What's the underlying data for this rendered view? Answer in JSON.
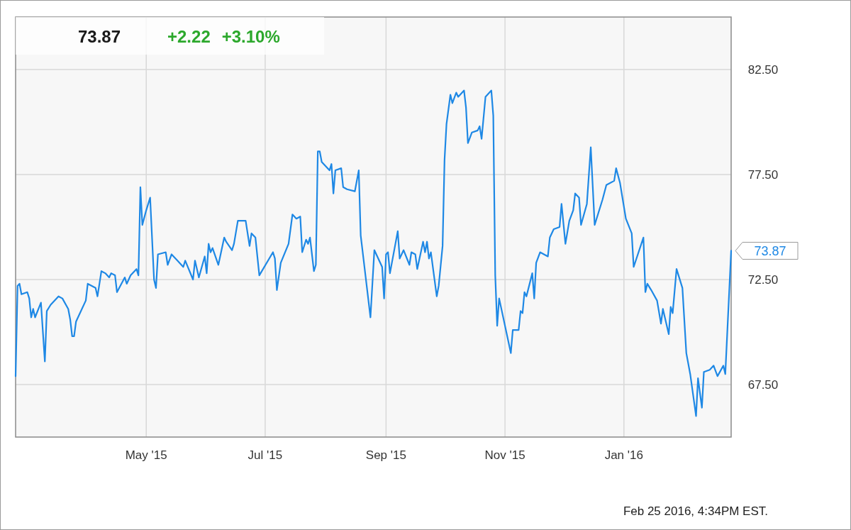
{
  "chart_data": {
    "type": "line",
    "title": "73.87",
    "subtitle": "+2.22 +3.10%",
    "x": [
      "2015-02-23",
      "2015-02-24",
      "2015-02-25",
      "2015-02-26",
      "2015-03-01",
      "2015-03-02",
      "2015-03-03",
      "2015-03-04",
      "2015-03-05",
      "2015-03-08",
      "2015-03-10",
      "2015-03-11",
      "2015-03-13",
      "2015-03-17",
      "2015-03-19",
      "2015-03-22",
      "2015-03-23",
      "2015-03-24",
      "2015-03-25",
      "2015-03-26",
      "2015-03-31",
      "2015-04-01",
      "2015-04-05",
      "2015-04-06",
      "2015-04-08",
      "2015-04-10",
      "2015-04-12",
      "2015-04-13",
      "2015-04-15",
      "2015-04-16",
      "2015-04-20",
      "2015-04-21",
      "2015-04-23",
      "2015-04-26",
      "2015-04-27",
      "2015-04-28",
      "2015-04-29",
      "2015-05-01",
      "2015-05-03",
      "2015-05-05",
      "2015-05-06",
      "2015-05-07",
      "2015-05-11",
      "2015-05-12",
      "2015-05-14",
      "2015-05-17",
      "2015-05-20",
      "2015-05-21",
      "2015-05-25",
      "2015-05-26",
      "2015-05-28",
      "2015-05-31",
      "2015-06-01",
      "2015-06-02",
      "2015-06-03",
      "2015-06-04",
      "2015-06-07",
      "2015-06-10",
      "2015-06-11",
      "2015-06-14",
      "2015-06-15",
      "2015-06-17",
      "2015-06-21",
      "2015-06-23",
      "2015-06-24",
      "2015-06-26",
      "2015-06-28",
      "2015-07-05",
      "2015-07-06",
      "2015-07-07",
      "2015-07-09",
      "2015-07-13",
      "2015-07-15",
      "2015-07-17",
      "2015-07-19",
      "2015-07-20",
      "2015-07-22",
      "2015-07-23",
      "2015-07-24",
      "2015-07-26",
      "2015-07-27",
      "2015-07-28",
      "2015-07-29",
      "2015-07-30",
      "2015-08-03",
      "2015-08-04",
      "2015-08-05",
      "2015-08-06",
      "2015-08-09",
      "2015-08-10",
      "2015-08-12",
      "2015-08-16",
      "2015-08-18",
      "2015-08-19",
      "2015-08-24",
      "2015-08-26",
      "2015-08-30",
      "2015-08-31",
      "2015-09-01",
      "2015-09-02",
      "2015-09-03",
      "2015-09-07",
      "2015-09-08",
      "2015-09-10",
      "2015-09-13",
      "2015-09-14",
      "2015-09-16",
      "2015-09-17",
      "2015-09-20",
      "2015-09-21",
      "2015-09-22",
      "2015-09-23",
      "2015-09-24",
      "2015-09-27",
      "2015-09-28",
      "2015-09-30",
      "2015-10-01",
      "2015-10-02",
      "2015-10-04",
      "2015-10-05",
      "2015-10-07",
      "2015-10-08",
      "2015-10-11",
      "2015-10-12",
      "2015-10-13",
      "2015-10-15",
      "2015-10-18",
      "2015-10-19",
      "2015-10-20",
      "2015-10-22",
      "2015-10-25",
      "2015-10-26",
      "2015-10-27",
      "2015-10-28",
      "2015-10-29",
      "2015-11-04",
      "2015-11-05",
      "2015-11-08",
      "2015-11-09",
      "2015-11-10",
      "2015-11-11",
      "2015-11-12",
      "2015-11-15",
      "2015-11-16",
      "2015-11-17",
      "2015-11-19",
      "2015-11-23",
      "2015-11-24",
      "2015-11-26",
      "2015-11-29",
      "2015-11-30",
      "2015-12-02",
      "2015-12-04",
      "2015-12-06",
      "2015-12-07",
      "2015-12-09",
      "2015-12-10",
      "2015-12-13",
      "2015-12-15",
      "2015-12-17",
      "2015-12-21",
      "2015-12-23",
      "2015-12-27",
      "2015-12-28",
      "2015-12-30",
      "2016-01-02",
      "2016-01-05",
      "2016-01-06",
      "2016-01-11",
      "2016-01-12",
      "2016-01-13",
      "2016-01-15",
      "2016-01-18",
      "2016-01-20",
      "2016-01-21",
      "2016-01-24",
      "2016-01-25",
      "2016-01-26",
      "2016-01-28",
      "2016-01-31",
      "2016-02-02",
      "2016-02-04",
      "2016-02-07",
      "2016-02-08",
      "2016-02-10",
      "2016-02-11",
      "2016-02-14",
      "2016-02-16",
      "2016-02-18",
      "2016-02-21",
      "2016-02-22",
      "2016-02-25"
    ],
    "series": [
      {
        "color": "#1e88e5",
        "values": [
          67.9,
          72.2,
          72.3,
          71.8,
          71.9,
          71.6,
          70.7,
          71.1,
          70.7,
          71.4,
          68.6,
          71.0,
          71.3,
          71.7,
          71.6,
          71.1,
          70.6,
          69.8,
          69.8,
          70.5,
          71.5,
          72.3,
          72.1,
          71.7,
          72.9,
          72.8,
          72.6,
          72.8,
          72.7,
          71.9,
          72.6,
          72.3,
          72.7,
          73.0,
          72.7,
          76.9,
          75.1,
          75.8,
          76.4,
          72.5,
          72.1,
          73.7,
          73.8,
          73.2,
          73.7,
          73.4,
          73.1,
          73.4,
          72.5,
          73.4,
          72.6,
          73.6,
          72.8,
          74.2,
          73.8,
          74.0,
          73.2,
          74.5,
          74.3,
          73.9,
          74.2,
          75.3,
          75.3,
          74.1,
          74.7,
          74.5,
          72.7,
          73.8,
          73.5,
          72.0,
          73.3,
          74.2,
          75.6,
          75.4,
          75.5,
          73.8,
          74.4,
          74.2,
          74.5,
          72.9,
          73.2,
          78.6,
          78.6,
          78.1,
          77.7,
          78.0,
          76.6,
          77.7,
          77.8,
          76.9,
          76.8,
          76.7,
          77.7,
          74.6,
          70.7,
          73.9,
          73.1,
          71.6,
          73.7,
          73.8,
          72.8,
          74.8,
          73.5,
          73.9,
          73.2,
          73.8,
          73.7,
          73.0,
          74.3,
          73.8,
          74.3,
          73.5,
          73.8,
          71.7,
          72.2,
          74.1,
          78.2,
          79.9,
          81.3,
          80.9,
          81.4,
          81.2,
          81.5,
          80.7,
          79.0,
          79.5,
          79.6,
          79.8,
          79.2,
          81.2,
          81.5,
          80.3,
          72.7,
          70.3,
          71.6,
          69.0,
          70.1,
          70.1,
          71.0,
          70.9,
          71.9,
          71.7,
          72.8,
          71.6,
          73.3,
          73.8,
          73.6,
          74.5,
          74.9,
          75.0,
          76.1,
          74.2,
          75.3,
          75.8,
          76.6,
          76.4,
          75.1,
          76.1,
          78.8,
          75.1,
          76.3,
          77.0,
          77.2,
          77.8,
          77.1,
          75.4,
          74.7,
          73.1,
          74.5,
          71.9,
          72.3,
          72.0,
          71.5,
          70.4,
          71.1,
          69.9,
          71.2,
          70.9,
          73.0,
          72.1,
          69.0,
          68.0,
          66.0,
          67.8,
          66.4,
          68.1,
          68.2,
          68.4,
          67.9,
          68.4,
          68.0,
          73.87
        ]
      }
    ],
    "xlim": [
      "2015-02-23",
      "2016-02-25"
    ],
    "xticks": [
      {
        "value": "2015-05-01",
        "label": "May '15"
      },
      {
        "value": "2015-07-01",
        "label": "Jul '15"
      },
      {
        "value": "2015-09-01",
        "label": "Sep '15"
      },
      {
        "value": "2015-11-01",
        "label": "Nov '15"
      },
      {
        "value": "2016-01-01",
        "label": "Jan '16"
      }
    ],
    "ylim": [
      65,
      85
    ],
    "yticks": [
      {
        "value": 67.5,
        "label": "67.50"
      },
      {
        "value": 72.5,
        "label": "72.50"
      },
      {
        "value": 77.5,
        "label": "77.50"
      },
      {
        "value": 82.5,
        "label": "82.50"
      }
    ],
    "grid": true,
    "marker": "none",
    "line_style": "solid",
    "annotations": [
      {
        "text": "73.87",
        "x": "2016-02-25",
        "y": 73.87
      },
      "Feb 25 2016, 4:34PM EST."
    ]
  }
}
